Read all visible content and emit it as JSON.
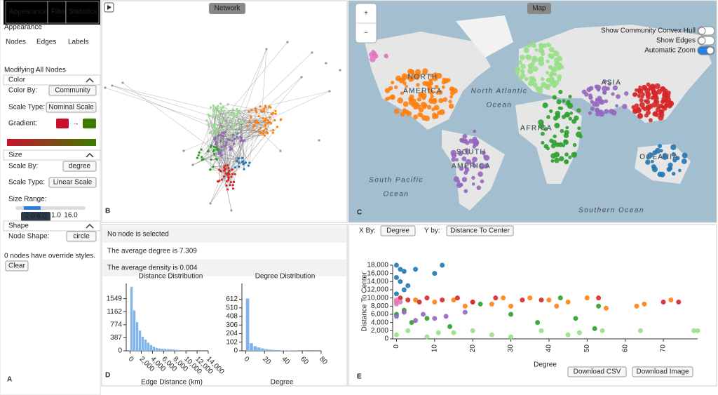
{
  "sidebar": {
    "tabs": [
      "Appearance",
      "Filter",
      "Statistics"
    ],
    "heading": "Appearance",
    "subtabs": [
      "Nodes",
      "Edges",
      "Labels"
    ],
    "mode": "Modifying All Nodes",
    "color": {
      "title": "Color",
      "color_by_label": "Color By:",
      "color_by_value": "Community",
      "scale_type_label": "Scale Type:",
      "scale_type_value": "Nominal Scale",
      "gradient_label": "Gradient:",
      "gradient_arrow": "→"
    },
    "size": {
      "title": "Size",
      "scale_by_label": "Scale By:",
      "scale_by_value": "degree",
      "scale_type_label": "Scale Type:",
      "scale_type_value": "Linear Scale",
      "range_label": "Size Range:",
      "range_min": "1.0",
      "range_max": "16.0",
      "range_tooltip": "2.0 6.0"
    },
    "shape": {
      "title": "Shape",
      "node_shape_label": "Node Shape:",
      "node_shape_value": "circle"
    },
    "override_note": "0 nodes have override styles.",
    "clear_button": "Clear"
  },
  "panel_letters": [
    "A",
    "B",
    "C",
    "D",
    "E"
  ],
  "network": {
    "title": "Network"
  },
  "map": {
    "title": "Map",
    "zoom_in": "+",
    "zoom_out": "−",
    "toggles": [
      {
        "label": "Show Community Convex Hull",
        "on": false
      },
      {
        "label": "Show Edges",
        "on": false
      },
      {
        "label": "Automatic Zoom",
        "on": true
      }
    ],
    "places": [
      [
        "NORTH",
        "AMERICA"
      ],
      [
        "North Atlantic",
        "Ocean"
      ],
      [
        "AFRICA"
      ],
      [
        "ASIA"
      ],
      [
        "SOUTH",
        "AMERICA"
      ],
      [
        "South Pacific",
        "Ocean"
      ],
      [
        "OCEANIA"
      ],
      [
        "Southern Ocean"
      ]
    ]
  },
  "info": {
    "rows": [
      "No node is selected",
      "The average degree is 7.309",
      "The average density is 0.004"
    ]
  },
  "scatter_controls": {
    "x_by_label": "X By:",
    "x_by_value": "Degree",
    "y_by_label": "Y by:",
    "y_by_value": "Distance To Center",
    "download_csv": "Download CSV",
    "download_image": "Download Image"
  },
  "chart_data": [
    {
      "type": "histogram",
      "title": "Distance Distribution",
      "x_label": "Edge Distance (km)",
      "color": "#7fb5ea",
      "bins": [
        0,
        500,
        1000,
        1500,
        2000,
        2500,
        3000,
        3500,
        4000,
        4500,
        5000,
        5500,
        6000,
        6500,
        7000,
        7500,
        8000,
        8500,
        9000,
        9500,
        10000
      ],
      "values": [
        1900,
        1200,
        850,
        600,
        420,
        330,
        240,
        170,
        120,
        90,
        70,
        60,
        55,
        50,
        45,
        40,
        30,
        25,
        20,
        15
      ],
      "xlim": [
        -700,
        14000
      ],
      "ylim": [
        0,
        2000
      ],
      "xticks": [
        0,
        {
          "value": 2000,
          "label": "2,000"
        },
        {
          "value": 4000,
          "label": "4,000"
        },
        {
          "value": 6000,
          "label": "6,000"
        },
        {
          "value": 8000,
          "label": "8,000"
        },
        {
          "value": 10000,
          "label": "10,000"
        },
        {
          "value": 12000,
          "label": "12,000"
        },
        {
          "value": 14000,
          "label": "14,000"
        }
      ],
      "yticks": [
        0,
        387,
        774,
        1162,
        1549
      ]
    },
    {
      "type": "histogram",
      "title": "Degree Distribution",
      "x_label": "Degree",
      "color": "#7fb5ea",
      "bins": [
        0,
        4,
        8,
        12,
        16,
        20,
        24,
        28,
        32,
        36,
        40,
        44,
        48,
        52,
        56,
        60,
        64,
        68,
        72,
        76,
        80
      ],
      "values": [
        620,
        90,
        55,
        40,
        28,
        20,
        14,
        10,
        8,
        6,
        5,
        4,
        3,
        3,
        2,
        2,
        1,
        1,
        1,
        1
      ],
      "xlim": [
        -4,
        80
      ],
      "ylim": [
        0,
        800
      ],
      "xticks": [
        0,
        20,
        40,
        60,
        80
      ],
      "yticks": [
        0,
        102,
        204,
        306,
        408,
        510,
        612
      ]
    },
    {
      "type": "scatter",
      "x_label": "Degree",
      "y_label": "Distance To Center",
      "xlim": [
        -1,
        79
      ],
      "ylim": [
        0,
        18000
      ],
      "xticks": [
        0,
        10,
        20,
        30,
        40,
        50,
        60,
        70
      ],
      "yticks": [
        0,
        {
          "value": 2000,
          "label": "2,000"
        },
        {
          "value": 4000,
          "label": "4,000"
        },
        {
          "value": 6000,
          "label": "6,000"
        },
        {
          "value": 8000,
          "label": "8,000"
        },
        {
          "value": 10000,
          "label": "10,000"
        },
        {
          "value": 12000,
          "label": "12,000"
        },
        {
          "value": 14000,
          "label": "14,000"
        },
        {
          "value": 16000,
          "label": "16,000"
        },
        {
          "value": 18000,
          "label": "18,000"
        }
      ],
      "series": [
        {
          "color": "#1f77b4",
          "x": [
            0,
            1,
            2,
            0,
            1,
            3,
            12,
            5,
            2,
            0,
            10
          ],
          "values": [
            18000,
            17000,
            16500,
            15000,
            14000,
            13000,
            18000,
            17000,
            12000,
            11000,
            16000
          ]
        },
        {
          "color": "#ff7f0e",
          "x": [
            0,
            5,
            10,
            15,
            20,
            25,
            30,
            35,
            40,
            45,
            50,
            55,
            63,
            65,
            72,
            42,
            28,
            18
          ],
          "values": [
            9000,
            9500,
            9000,
            9500,
            9000,
            8500,
            8000,
            10000,
            9500,
            9000,
            10000,
            7500,
            8000,
            8500,
            9500,
            8000,
            10000,
            8000
          ]
        },
        {
          "color": "#d62728",
          "x": [
            1,
            3,
            6,
            8,
            12,
            16,
            20,
            26,
            33,
            38,
            53,
            70,
            74
          ],
          "values": [
            10000,
            9500,
            9000,
            10000,
            9500,
            10000,
            9000,
            10000,
            9500,
            9500,
            10000,
            9000,
            9000
          ]
        },
        {
          "color": "#2ca02c",
          "x": [
            0,
            2,
            4,
            8,
            14,
            22,
            30,
            37,
            47,
            52,
            53,
            43
          ],
          "values": [
            6000,
            7000,
            4000,
            5000,
            3000,
            8500,
            6000,
            4000,
            5000,
            2500,
            8000,
            10000
          ]
        },
        {
          "color": "#98df8a",
          "x": [
            0,
            3,
            8,
            15,
            20,
            25,
            30,
            38,
            45,
            48,
            54,
            64,
            78,
            79,
            11
          ],
          "values": [
            1000,
            2000,
            500,
            1500,
            2000,
            1000,
            500,
            2000,
            1000,
            1500,
            2000,
            2000,
            2000,
            2000,
            1500
          ]
        },
        {
          "color": "#9467bd",
          "x": [
            0,
            2,
            5,
            7,
            10,
            13,
            18
          ],
          "values": [
            5500,
            6500,
            4500,
            6000,
            5000,
            5500,
            6500
          ]
        },
        {
          "color": "#e377c2",
          "x": [
            0,
            1,
            0
          ],
          "values": [
            8500,
            9000,
            9500
          ]
        }
      ]
    }
  ]
}
